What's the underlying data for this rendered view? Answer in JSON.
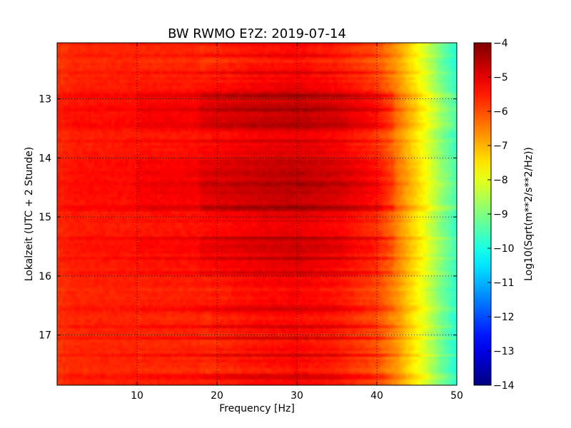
{
  "chart_data": {
    "type": "heatmap",
    "title": "BW RWMO E?Z: 2019-07-14",
    "xlabel": "Frequency [Hz]",
    "ylabel": "Lokalzeit (UTC + 2 Stunde)",
    "xlim": [
      0,
      50
    ],
    "ylim": [
      17.85,
      12.05
    ],
    "y_inverted": true,
    "xticks": [
      10,
      20,
      30,
      40,
      50
    ],
    "xtick_labels": [
      "10",
      "20",
      "30",
      "40",
      "50"
    ],
    "yticks": [
      13,
      14,
      15,
      16,
      17
    ],
    "ytick_labels": [
      "13",
      "14",
      "15",
      "16",
      "17"
    ],
    "grid": true,
    "colormap": "jet",
    "colorbar": {
      "label": "Log10(Sqrt(m**2/s**2/Hz))",
      "range": [
        -14,
        -4
      ],
      "ticks": [
        -4,
        -5,
        -6,
        -7,
        -8,
        -9,
        -10,
        -11,
        -12,
        -13,
        -14
      ],
      "tick_labels": [
        "−4",
        "−5",
        "−6",
        "−7",
        "−8",
        "−9",
        "−10",
        "−11",
        "−12",
        "−13",
        "−14"
      ]
    },
    "spectrum_profile": {
      "frequency_hz": [
        0,
        2,
        10,
        18,
        25,
        30,
        35,
        40,
        42,
        44,
        46,
        48,
        50
      ],
      "log10_amplitude": [
        -5.7,
        -5.55,
        -5.5,
        -5.45,
        -5.2,
        -5.1,
        -5.3,
        -5.8,
        -6.4,
        -7.2,
        -8.0,
        -9.0,
        -9.8
      ]
    },
    "time_band_modulation": [
      {
        "time": 12.05,
        "delta": 0.0
      },
      {
        "time": 12.2,
        "delta": -0.4
      },
      {
        "time": 12.5,
        "delta": -0.3
      },
      {
        "time": 12.8,
        "delta": 0.1
      },
      {
        "time": 13.0,
        "delta": 0.4
      },
      {
        "time": 13.2,
        "delta": 0.5
      },
      {
        "time": 13.4,
        "delta": 0.3
      },
      {
        "time": 13.6,
        "delta": 0.1
      },
      {
        "time": 13.8,
        "delta": 0.0
      },
      {
        "time": 14.0,
        "delta": 0.3
      },
      {
        "time": 14.3,
        "delta": 0.5
      },
      {
        "time": 14.6,
        "delta": 0.5
      },
      {
        "time": 14.9,
        "delta": 0.3
      },
      {
        "time": 15.2,
        "delta": 0.1
      },
      {
        "time": 15.5,
        "delta": 0.3
      },
      {
        "time": 15.8,
        "delta": 0.1
      },
      {
        "time": 16.1,
        "delta": -0.1
      },
      {
        "time": 16.5,
        "delta": -0.2
      },
      {
        "time": 17.0,
        "delta": -0.2
      },
      {
        "time": 17.5,
        "delta": -0.2
      },
      {
        "time": 17.85,
        "delta": -0.3
      }
    ],
    "strong_bands_time": [
      12.25,
      12.55,
      12.95,
      13.2,
      13.45,
      13.72,
      14.45,
      14.85,
      15.35,
      15.7,
      15.95,
      16.55,
      16.85,
      17.05,
      17.35,
      17.7
    ]
  }
}
